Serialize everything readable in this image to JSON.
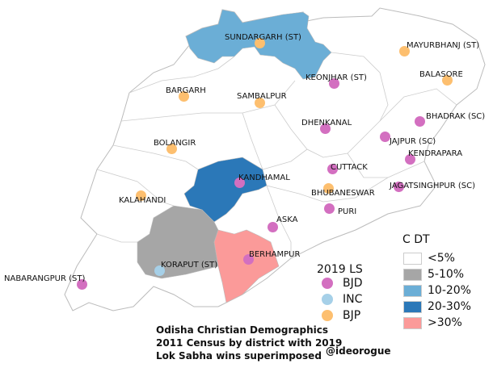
{
  "legend_choropleth": {
    "title": "C DT",
    "classes": [
      {
        "label": "<5%",
        "color": "#ffffff"
      },
      {
        "label": "5-10%",
        "color": "#a6a6a6"
      },
      {
        "label": "10-20%",
        "color": "#6baed6"
      },
      {
        "label": "20-30%",
        "color": "#2b78b8"
      },
      {
        "label": ">30%",
        "color": "#fb9a99"
      }
    ]
  },
  "legend_parties": {
    "title": "2019 LS",
    "parties": [
      {
        "label": "BJD",
        "color": "#d36fc0"
      },
      {
        "label": "INC",
        "color": "#a6d0e8"
      },
      {
        "label": "BJP",
        "color": "#fdbf6f"
      }
    ]
  },
  "title_lines": [
    "Odisha Christian Demographics",
    "2011 Census by district with 2019",
    "Lok Sabha wins superimposed"
  ],
  "credit": "@ideorogue",
  "constituencies": [
    {
      "name": "SUNDARGARH (ST)",
      "party": "BJP"
    },
    {
      "name": "MAYURBHANJ (ST)",
      "party": "BJP"
    },
    {
      "name": "BALASORE",
      "party": "BJP"
    },
    {
      "name": "KEONJHAR (ST)",
      "party": "BJD"
    },
    {
      "name": "BARGARH",
      "party": "BJP"
    },
    {
      "name": "SAMBALPUR",
      "party": "BJP"
    },
    {
      "name": "BHADRAK (SC)",
      "party": "BJD"
    },
    {
      "name": "DHENKANAL",
      "party": "BJD"
    },
    {
      "name": "JAJPUR (SC)",
      "party": "BJD"
    },
    {
      "name": "BOLANGIR",
      "party": "BJP"
    },
    {
      "name": "KENDRAPARA",
      "party": "BJD"
    },
    {
      "name": "CUTTACK",
      "party": "BJD"
    },
    {
      "name": "KANDHAMAL",
      "party": "BJD"
    },
    {
      "name": "JAGATSINGHPUR (SC)",
      "party": "BJD"
    },
    {
      "name": "BHUBANESWAR",
      "party": "BJP"
    },
    {
      "name": "KALAHANDI",
      "party": "BJP"
    },
    {
      "name": "PURI",
      "party": "BJD"
    },
    {
      "name": "ASKA",
      "party": "BJD"
    },
    {
      "name": "BERHAMPUR",
      "party": "BJD"
    },
    {
      "name": "KORAPUT (ST)",
      "party": "INC"
    },
    {
      "name": "NABARANGPUR (ST)",
      "party": "BJD"
    }
  ],
  "shaded_districts": [
    {
      "class": "10-20%"
    },
    {
      "class": "20-30%"
    },
    {
      "class": "5-10%"
    },
    {
      "class": ">30%"
    }
  ]
}
